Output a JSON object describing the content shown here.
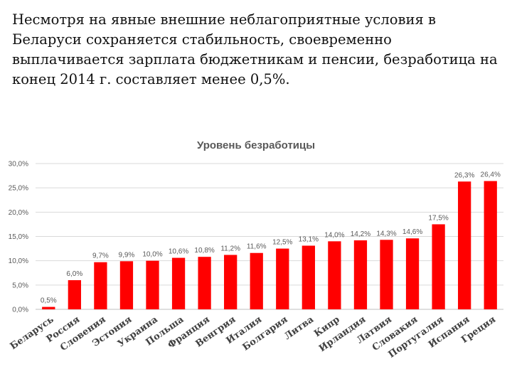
{
  "intro_text": "Несмотря на явные внешние неблагоприятные условия в Беларуси сохраняется стабильность, своевременно выплачивается зарплата бюджетникам и пенсии, безработица на конец 2014 г. составляет менее 0,5%.",
  "chart_data": {
    "type": "bar",
    "title": "Уровень безработицы",
    "xlabel": "",
    "ylabel": "",
    "ylim": [
      0,
      30
    ],
    "yticks": [
      0,
      5,
      10,
      15,
      20,
      25,
      30
    ],
    "ytick_labels": [
      "0,0%",
      "5,0%",
      "10,0%",
      "15,0%",
      "20,0%",
      "25,0%",
      "30,0%"
    ],
    "grid": true,
    "bar_color": "#ff0000",
    "categories": [
      "Беларусь",
      "Россия",
      "Словения",
      "Эстония",
      "Украина",
      "Польша",
      "Франция",
      "Венгрия",
      "Италия",
      "Болгария",
      "Литва",
      "Кипр",
      "Ирландия",
      "Латвия",
      "Словакия",
      "Португалия",
      "Испания",
      "Греция"
    ],
    "values": [
      0.5,
      6.0,
      9.7,
      9.9,
      10.0,
      10.6,
      10.8,
      11.2,
      11.6,
      12.5,
      13.1,
      14.0,
      14.2,
      14.3,
      14.6,
      17.5,
      26.3,
      26.4
    ],
    "data_labels": [
      "0,5%",
      "6,0%",
      "9,7%",
      "9,9%",
      "10,0%",
      "10,6%",
      "10,8%",
      "11,2%",
      "11,6%",
      "12,5%",
      "13,1%",
      "14,0%",
      "14,2%",
      "14,3%",
      "14,6%",
      "17,5%",
      "26,3%",
      "26,4%"
    ]
  }
}
